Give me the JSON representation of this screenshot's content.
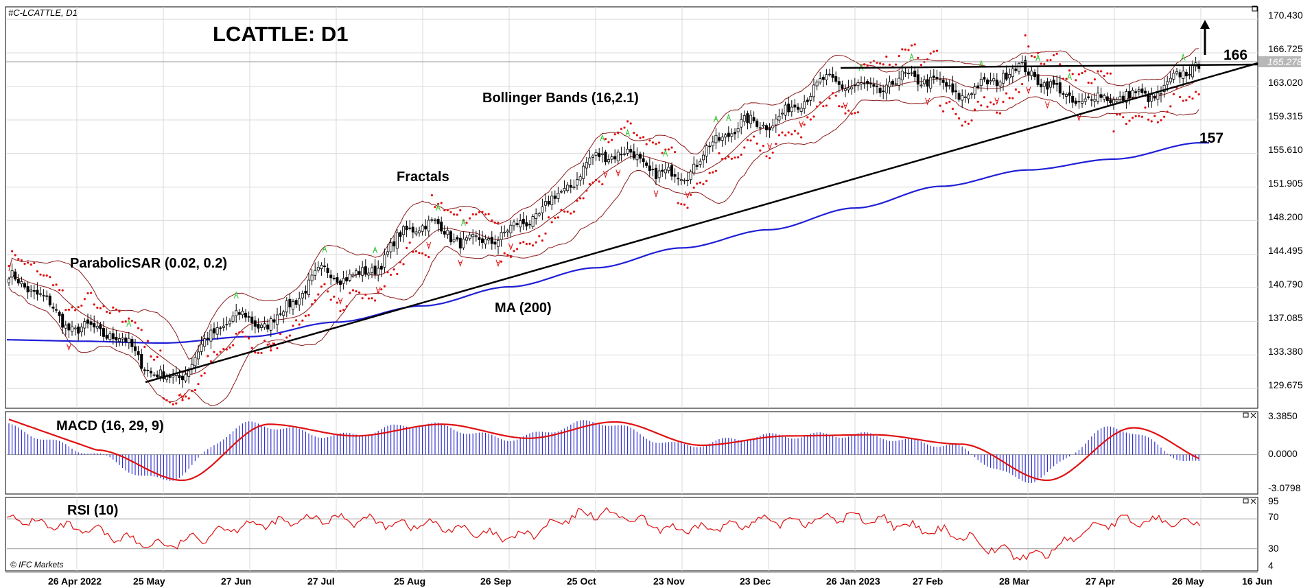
{
  "header": {
    "symbol": "#C-LCATTLE, D1",
    "title": "LCATTLE: D1"
  },
  "annotations": {
    "bollinger": "Bollinger Bands (16,2.1)",
    "fractals": "Fractals",
    "sar": "ParabolicSAR (0.02, 0.2)",
    "ma": "MA (200)",
    "resistance": "166",
    "support": "157",
    "watermark": "© IFC Markets"
  },
  "price_axis": {
    "ticks": [
      "170.430",
      "166.725",
      "163.020",
      "159.315",
      "155.610",
      "151.905",
      "148.200",
      "144.495",
      "140.790",
      "137.085",
      "133.380",
      "129.675"
    ],
    "current": "165.278"
  },
  "macd_axis": {
    "label": "MACD (16, 29, 9)",
    "ticks": [
      "3.3850",
      "0.0000",
      "-3.0798"
    ]
  },
  "rsi_axis": {
    "label": "RSI (10)",
    "ticks": [
      "95",
      "70",
      "30",
      "4"
    ]
  },
  "x_axis": {
    "ticks": [
      "26 Apr 2022",
      "25 May",
      "27 Jun",
      "27 Jul",
      "25 Aug",
      "26 Sep",
      "25 Oct",
      "23 Nov",
      "23 Dec",
      "26 Jan 2023",
      "27 Feb",
      "28 Mar",
      "27 Apr",
      "26 May",
      "16 Jun"
    ]
  },
  "chart_data": [
    {
      "type": "line",
      "title": "LCATTLE: D1",
      "x": [
        "26 Apr 2022",
        "25 May",
        "27 Jun",
        "27 Jul",
        "25 Aug",
        "26 Sep",
        "25 Oct",
        "23 Nov",
        "23 Dec",
        "26 Jan 2023",
        "27 Feb",
        "28 Mar",
        "27 Apr",
        "26 May"
      ],
      "series": [
        {
          "name": "",
          "values": [
            137.0,
            131.5,
            137.3,
            141.8,
            147.0,
            146.4,
            155.0,
            154.0,
            160.0,
            163.6,
            163.0,
            164.0,
            161.0,
            165.3
          ]
        },
        {
          "name": "MA (200)",
          "values": [
            134.9,
            134.7,
            135.4,
            137.0,
            138.8,
            140.9,
            143.0,
            145.2,
            147.2,
            149.6,
            152.0,
            153.8,
            155.0,
            156.8
          ]
        }
      ],
      "ylim": [
        127.5,
        171.8
      ],
      "levels": [
        166,
        157
      ],
      "grid": true
    },
    {
      "type": "line",
      "title": "MACD (16, 29, 9)",
      "x": [
        "26 Apr 2022",
        "25 May",
        "27 Jun",
        "27 Jul",
        "25 Aug",
        "26 Sep",
        "25 Oct",
        "23 Nov",
        "23 Dec",
        "26 Jan 2023",
        "27 Feb",
        "28 Mar",
        "27 Apr",
        "26 May"
      ],
      "series": [
        {
          "name": "MACD (16, 29, 9)",
          "values": [
            0.4,
            -2.2,
            2.6,
            1.6,
            2.6,
            1.4,
            2.8,
            0.8,
            1.6,
            1.7,
            0.9,
            -2.2,
            2.3,
            -0.8
          ]
        }
      ],
      "ylim": [
        -3.0798,
        3.385
      ],
      "grid": true
    },
    {
      "type": "line",
      "title": "RSI (10)",
      "x": [
        "26 Apr 2022",
        "25 May",
        "27 Jun",
        "27 Jul",
        "25 Aug",
        "26 Sep",
        "25 Oct",
        "23 Nov",
        "23 Dec",
        "26 Jan 2023",
        "27 Feb",
        "28 Mar",
        "27 Apr",
        "26 May"
      ],
      "series": [
        {
          "name": "RSI (10)",
          "values": [
            55,
            35,
            62,
            70,
            62,
            45,
            78,
            55,
            66,
            72,
            52,
            20,
            66,
            68
          ]
        }
      ],
      "ylim": [
        4,
        95
      ],
      "levels": [
        70,
        30
      ],
      "grid": true
    }
  ]
}
